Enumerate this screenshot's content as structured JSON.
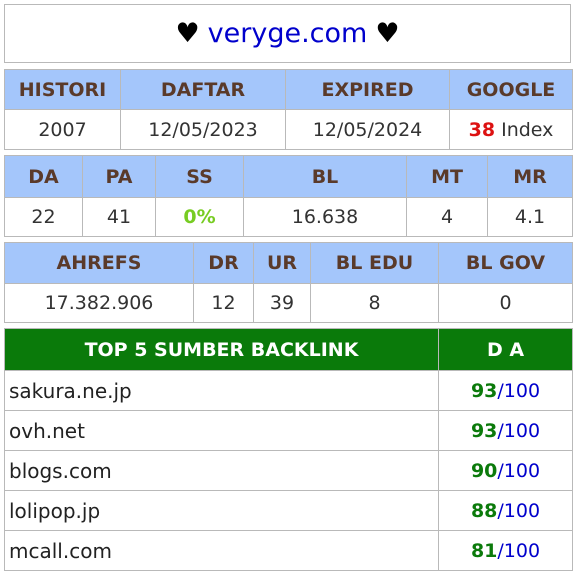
{
  "header": {
    "heart_left": "♥",
    "domain": "veryge.com",
    "heart_right": "♥"
  },
  "table1": {
    "headers": [
      "HISTORI",
      "DAFTAR",
      "EXPIRED",
      "GOOGLE"
    ],
    "values": {
      "histori": "2007",
      "daftar": "12/05/2023",
      "expired": "12/05/2024",
      "google_count": "38",
      "google_suffix": "Index"
    }
  },
  "table2": {
    "headers": [
      "DA",
      "PA",
      "SS",
      "BL",
      "MT",
      "MR"
    ],
    "values": [
      "22",
      "41",
      "0%",
      "16.638",
      "4",
      "4.1"
    ]
  },
  "table3": {
    "headers": [
      "AHREFS",
      "DR",
      "UR",
      "BL EDU",
      "BL GOV"
    ],
    "values": [
      "17.382.906",
      "12",
      "39",
      "8",
      "0"
    ]
  },
  "top_backlinks": {
    "title": "TOP 5 SUMBER BACKLINK",
    "da_header": "D A",
    "rows": [
      {
        "site": "sakura.ne.jp",
        "score": "93",
        "max": "/100"
      },
      {
        "site": "ovh.net",
        "score": "93",
        "max": "/100"
      },
      {
        "site": "blogs.com",
        "score": "90",
        "max": "/100"
      },
      {
        "site": "lolipop.jp",
        "score": "88",
        "max": "/100"
      },
      {
        "site": "mcall.com",
        "score": "81",
        "max": "/100"
      }
    ]
  },
  "colors": {
    "header_blue": "#a4c6fb",
    "header_green": "#0a7a0a",
    "domain_blue": "#0000cc",
    "index_red": "#dd1111",
    "pct_green": "#77cc22"
  }
}
